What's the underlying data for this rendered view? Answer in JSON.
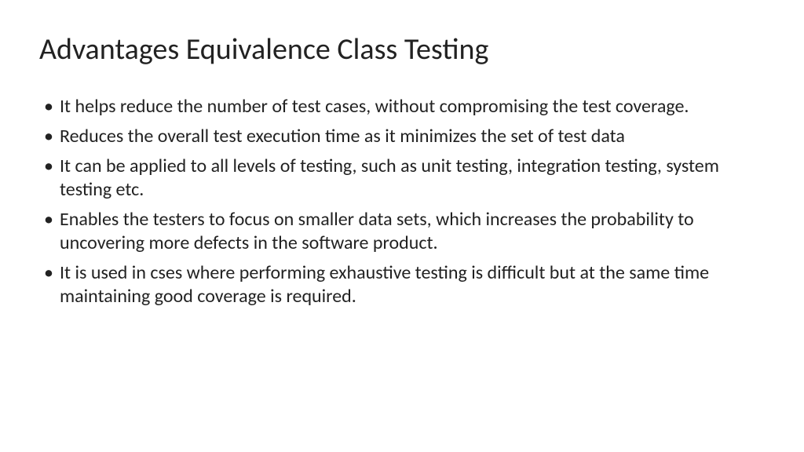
{
  "slide": {
    "title": "Advantages Equivalence Class Testing",
    "title_fontsize": 38,
    "title_color": "#222222",
    "background_color": "#ffffff",
    "body_fontsize": 24,
    "body_color": "#222222",
    "bullets": [
      "It helps reduce the number of test cases, without compromising the test coverage.",
      "Reduces the overall test execution time as it minimizes the set of test data",
      "It can be applied to all levels of testing, such as unit testing, integration testing, system testing etc.",
      "Enables the testers to focus on smaller data sets, which increases the probability to uncovering more defects in the software product.",
      "It is used in cses where performing exhaustive testing is difficult but at the same time maintaining good coverage is required."
    ]
  }
}
